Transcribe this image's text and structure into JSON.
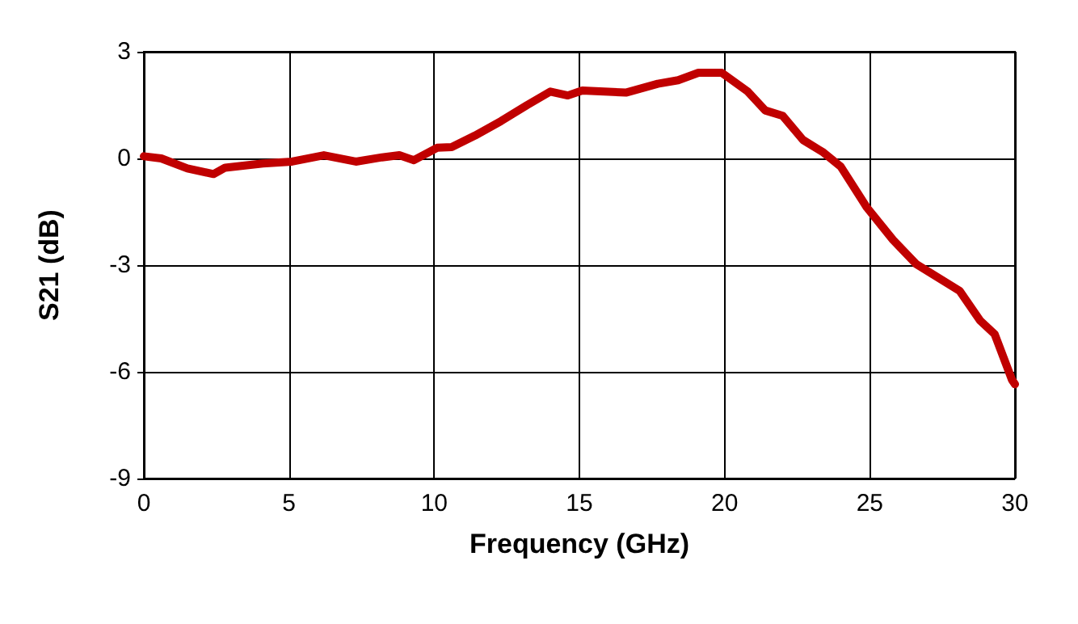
{
  "chart_data": {
    "type": "line",
    "xlabel": "Frequency (GHz)",
    "ylabel": "S21 (dB)",
    "x": [
      0,
      0.6,
      1.5,
      2.4,
      2.8,
      4.1,
      5.1,
      6.2,
      7.3,
      8.2,
      8.8,
      9.3,
      10.1,
      10.6,
      11.4,
      12.3,
      13.2,
      14.0,
      14.6,
      15.1,
      16.6,
      17.7,
      18.4,
      19.1,
      19.9,
      20.8,
      21.4,
      22.0,
      22.7,
      23.4,
      24.0,
      24.9,
      25.8,
      26.6,
      28.1,
      28.8,
      29.3,
      29.9,
      30
    ],
    "series": [
      {
        "color": "#c00000",
        "values": [
          0.06,
          0,
          -0.28,
          -0.44,
          -0.26,
          -0.14,
          -0.09,
          0.09,
          -0.09,
          0.03,
          0.09,
          -0.05,
          0.3,
          0.32,
          0.64,
          1.05,
          1.5,
          1.88,
          1.77,
          1.91,
          1.85,
          2.1,
          2.2,
          2.41,
          2.41,
          1.88,
          1.35,
          1.2,
          0.52,
          0.17,
          -0.23,
          -1.38,
          -2.29,
          -2.97,
          -3.73,
          -4.56,
          -4.94,
          -6.23,
          -6.35
        ]
      }
    ],
    "xlim": [
      0,
      30
    ],
    "xticks": [
      0,
      5,
      10,
      15,
      20,
      25,
      30
    ],
    "ylim": [
      -9,
      3
    ],
    "yticks": [
      -9,
      -6,
      -3,
      0,
      3
    ],
    "grid": true,
    "marker": "none",
    "line_style": "solid"
  }
}
